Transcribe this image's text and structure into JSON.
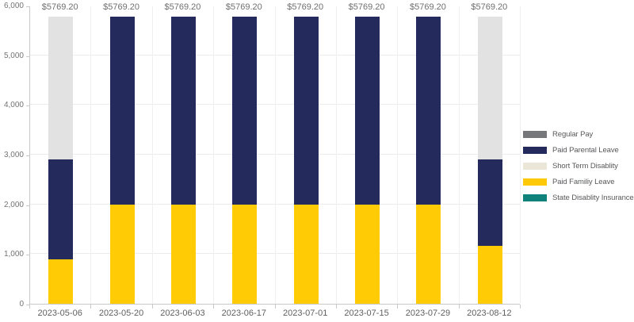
{
  "chart_data": {
    "type": "bar",
    "stacked": true,
    "title": "",
    "xlabel": "",
    "ylabel": "",
    "categories": [
      "2023-05-06",
      "2023-05-20",
      "2023-06-03",
      "2023-06-17",
      "2023-07-01",
      "2023-07-15",
      "2023-07-29",
      "2023-08-12"
    ],
    "series": [
      {
        "name": "Paid Familiy Leave",
        "color": "#ffcb05",
        "values": [
          890,
          2000,
          2000,
          2000,
          2000,
          2000,
          2000,
          1160
        ]
      },
      {
        "name": "Paid Parental Leave",
        "color": "#252a5c",
        "values": [
          2015,
          3769.2,
          3769.2,
          3769.2,
          3769.2,
          3769.2,
          3769.2,
          1745
        ]
      },
      {
        "name": "Short Term Disablity",
        "color": "#e2e2e2",
        "values": [
          2864.2,
          0,
          0,
          0,
          0,
          0,
          0,
          2864.2
        ]
      },
      {
        "name": "Regular Pay",
        "color": "#76777a",
        "values": [
          0,
          0,
          0,
          0,
          0,
          0,
          0,
          0
        ]
      },
      {
        "name": "State Disablity Insurance",
        "color": "#0f837b",
        "values": [
          0,
          0,
          0,
          0,
          0,
          0,
          0,
          0
        ]
      }
    ],
    "bar_totals": [
      5769.2,
      5769.2,
      5769.2,
      5769.2,
      5769.2,
      5769.2,
      5769.2,
      5769.2
    ],
    "bar_total_labels": [
      "$5769.20",
      "$5769.20",
      "$5769.20",
      "$5769.20",
      "$5769.20",
      "$5769.20",
      "$5769.20",
      "$5769.20"
    ],
    "ylim": [
      0,
      6000
    ],
    "ytick_values": [
      0,
      1000,
      2000,
      3000,
      4000,
      5000,
      6000
    ],
    "ytick_labels": [
      "0",
      "1,000",
      "2,000",
      "3,000",
      "4,000",
      "5,000",
      "6,000"
    ],
    "grid": true,
    "legend_position": "right",
    "legend": [
      {
        "label": "Regular Pay",
        "color": "#76777a"
      },
      {
        "label": "Paid Parental Leave",
        "color": "#252a5c"
      },
      {
        "label": "Short Term Disablity",
        "color": "#eae7d8"
      },
      {
        "label": "Paid Familiy Leave",
        "color": "#ffc907"
      },
      {
        "label": "State Disablity Insurance",
        "color": "#0f837b"
      }
    ],
    "colors": {
      "background": "#ffffff",
      "axis": "#c9c9c9",
      "gridline": "#ececec",
      "tick_text": "#737373",
      "bar_label_text": "#6f6f6f"
    }
  }
}
